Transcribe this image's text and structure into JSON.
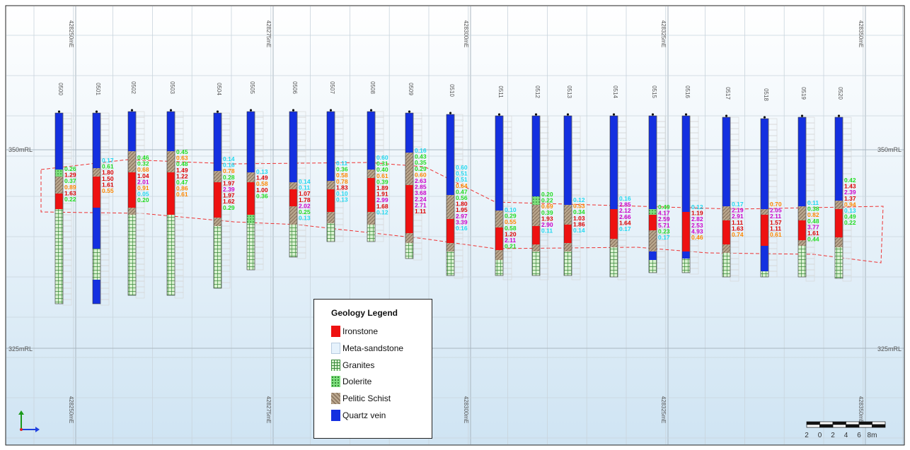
{
  "easting_labels": [
    "428250mE",
    "428275mE",
    "428300mE",
    "428325mE",
    "428350mE"
  ],
  "rl_labels": [
    "350mRL",
    "325mRL"
  ],
  "colors": {
    "ironstone": "#ee1111",
    "meta_sandstone": "#e6f2fc",
    "granites": "#d9f2d0",
    "dolerite": "#7ee07e",
    "pelitic_schist": "#b8a58c",
    "quartz_vein": "#1430e0",
    "assay_lime": "#22dd22",
    "assay_red": "#dd0000",
    "assay_orange": "#ff8800",
    "assay_magenta": "#cc00cc",
    "assay_cyan": "#22d8f0",
    "envelope": "#ee3333"
  },
  "legend": {
    "title": "Geology Legend",
    "items": [
      {
        "label": "Ironstone",
        "key": "ironstone"
      },
      {
        "label": "Meta-sandstone",
        "key": "meta_sandstone"
      },
      {
        "label": "Granites",
        "key": "granites"
      },
      {
        "label": "Dolerite",
        "key": "dolerite"
      },
      {
        "label": "Pelitic Schist",
        "key": "pelitic_schist"
      },
      {
        "label": "Quartz vein",
        "key": "quartz_vein"
      }
    ]
  },
  "scale_bar": {
    "ticks": [
      "2",
      "0",
      "2",
      "4",
      "6",
      "8m"
    ]
  },
  "holes": [
    {
      "id": "0500",
      "assays": [
        [
          "0.26",
          "lime"
        ],
        [
          "1.29",
          "red"
        ],
        [
          "0.37",
          "lime"
        ],
        [
          "0.89",
          "orange"
        ],
        [
          "1.63",
          "red"
        ],
        [
          "0.22",
          "lime"
        ]
      ]
    },
    {
      "id": "0501",
      "assays": [
        [
          "0.17",
          "cyan"
        ],
        [
          "0.61",
          "lime"
        ],
        [
          "1.80",
          "red"
        ],
        [
          "1.50",
          "red"
        ],
        [
          "1.61",
          "red"
        ],
        [
          "0.55",
          "orange"
        ]
      ]
    },
    {
      "id": "0502",
      "assays": [
        [
          "0.46",
          "lime"
        ],
        [
          "0.32",
          "lime"
        ],
        [
          "0.68",
          "orange"
        ],
        [
          "1.04",
          "red"
        ],
        [
          "2.01",
          "magenta"
        ],
        [
          "0.91",
          "orange"
        ],
        [
          "0.05",
          "cyan"
        ],
        [
          "0.20",
          "lime"
        ]
      ]
    },
    {
      "id": "0503",
      "assays": [
        [
          "0.45",
          "lime"
        ],
        [
          "0.63",
          "orange"
        ],
        [
          "0.48",
          "lime"
        ],
        [
          "1.49",
          "red"
        ],
        [
          "1.22",
          "red"
        ],
        [
          "0.47",
          "lime"
        ],
        [
          "0.86",
          "orange"
        ],
        [
          "0.61",
          "orange"
        ]
      ]
    },
    {
      "id": "0504",
      "assays": [
        [
          "0.14",
          "cyan"
        ],
        [
          "0.16",
          "cyan"
        ],
        [
          "0.78",
          "orange"
        ],
        [
          "0.28",
          "lime"
        ],
        [
          "1.97",
          "red"
        ],
        [
          "2.39",
          "magenta"
        ],
        [
          "1.97",
          "red"
        ],
        [
          "1.62",
          "red"
        ],
        [
          "0.29",
          "lime"
        ]
      ]
    },
    {
      "id": "0505",
      "assays": [
        [
          "0.13",
          "cyan"
        ],
        [
          "1.49",
          "red"
        ],
        [
          "0.58",
          "orange"
        ],
        [
          "1.00",
          "red"
        ],
        [
          "0.36",
          "lime"
        ]
      ]
    },
    {
      "id": "0506",
      "assays": [
        [
          "0.14",
          "cyan"
        ],
        [
          "0.11",
          "cyan"
        ],
        [
          "1.07",
          "red"
        ],
        [
          "1.78",
          "red"
        ],
        [
          "2.02",
          "magenta"
        ],
        [
          "0.25",
          "lime"
        ],
        [
          "0.13",
          "cyan"
        ]
      ]
    },
    {
      "id": "0507",
      "assays": [
        [
          "0.11",
          "cyan"
        ],
        [
          "0.36",
          "lime"
        ],
        [
          "0.58",
          "orange"
        ],
        [
          "0.78",
          "orange"
        ],
        [
          "1.83",
          "red"
        ],
        [
          "0.10",
          "cyan"
        ],
        [
          "0.13",
          "cyan"
        ]
      ]
    },
    {
      "id": "0508",
      "assays": [
        [
          "0.60",
          "cyan"
        ],
        [
          "0.31",
          "lime"
        ],
        [
          "0.40",
          "lime"
        ],
        [
          "0.61",
          "orange"
        ],
        [
          "0.39",
          "lime"
        ],
        [
          "1.89",
          "red"
        ],
        [
          "1.91",
          "red"
        ],
        [
          "2.99",
          "magenta"
        ],
        [
          "1.68",
          "red"
        ],
        [
          "0.12",
          "cyan"
        ]
      ]
    },
    {
      "id": "0509",
      "assays": [
        [
          "0.16",
          "cyan"
        ],
        [
          "0.43",
          "lime"
        ],
        [
          "0.35",
          "lime"
        ],
        [
          "0.29",
          "lime"
        ],
        [
          "0.60",
          "orange"
        ],
        [
          "2.63",
          "magenta"
        ],
        [
          "2.85",
          "magenta"
        ],
        [
          "3.68",
          "magenta"
        ],
        [
          "2.24",
          "magenta"
        ],
        [
          "2.71",
          "magenta"
        ],
        [
          "1.11",
          "red"
        ]
      ]
    },
    {
      "id": "0510",
      "assays": [
        [
          "0.60",
          "cyan"
        ],
        [
          "0.51",
          "cyan"
        ],
        [
          "0.51",
          "cyan"
        ],
        [
          "0.64",
          "orange"
        ],
        [
          "0.47",
          "lime"
        ],
        [
          "0.56",
          "lime"
        ],
        [
          "1.80",
          "red"
        ],
        [
          "1.95",
          "red"
        ],
        [
          "2.97",
          "magenta"
        ],
        [
          "3.39",
          "magenta"
        ],
        [
          "0.16",
          "cyan"
        ]
      ]
    },
    {
      "id": "0511",
      "assays": [
        [
          "0.10",
          "cyan"
        ],
        [
          "0.29",
          "lime"
        ],
        [
          "0.55",
          "orange"
        ],
        [
          "0.58",
          "lime"
        ],
        [
          "1.20",
          "red"
        ],
        [
          "2.11",
          "magenta"
        ],
        [
          "0.21",
          "lime"
        ]
      ]
    },
    {
      "id": "0512",
      "assays": [
        [
          "0.20",
          "lime"
        ],
        [
          "0.22",
          "lime"
        ],
        [
          "0.69",
          "orange"
        ],
        [
          "0.39",
          "lime"
        ],
        [
          "1.93",
          "red"
        ],
        [
          "2.90",
          "magenta"
        ],
        [
          "0.11",
          "cyan"
        ]
      ]
    },
    {
      "id": "0513",
      "assays": [
        [
          "0.12",
          "cyan"
        ],
        [
          "0.53",
          "orange"
        ],
        [
          "0.34",
          "lime"
        ],
        [
          "1.03",
          "red"
        ],
        [
          "1.86",
          "red"
        ],
        [
          "0.14",
          "cyan"
        ]
      ]
    },
    {
      "id": "0514",
      "assays": [
        [
          "0.16",
          "cyan"
        ],
        [
          "2.85",
          "magenta"
        ],
        [
          "2.12",
          "magenta"
        ],
        [
          "2.66",
          "magenta"
        ],
        [
          "1.64",
          "red"
        ],
        [
          "0.17",
          "cyan"
        ]
      ]
    },
    {
      "id": "0515",
      "assays": [
        [
          "0.49",
          "lime"
        ],
        [
          "4.17",
          "magenta"
        ],
        [
          "2.59",
          "magenta"
        ],
        [
          "5.71",
          "magenta"
        ],
        [
          "0.23",
          "lime"
        ],
        [
          "0.17",
          "cyan"
        ]
      ]
    },
    {
      "id": "0516",
      "assays": [
        [
          "0.12",
          "cyan"
        ],
        [
          "1.19",
          "red"
        ],
        [
          "2.82",
          "magenta"
        ],
        [
          "2.53",
          "magenta"
        ],
        [
          "4.93",
          "magenta"
        ],
        [
          "0.46",
          "orange"
        ]
      ]
    },
    {
      "id": "0517",
      "assays": [
        [
          "0.17",
          "cyan"
        ],
        [
          "2.19",
          "magenta"
        ],
        [
          "2.91",
          "magenta"
        ],
        [
          "1.11",
          "red"
        ],
        [
          "1.63",
          "red"
        ],
        [
          "0.74",
          "orange"
        ]
      ]
    },
    {
      "id": "0518",
      "assays": [
        [
          "0.70",
          "orange"
        ],
        [
          "2.05",
          "magenta"
        ],
        [
          "2.11",
          "magenta"
        ],
        [
          "1.57",
          "red"
        ],
        [
          "1.11",
          "red"
        ],
        [
          "0.61",
          "orange"
        ]
      ]
    },
    {
      "id": "0519",
      "assays": [
        [
          "0.11",
          "cyan"
        ],
        [
          "0.38",
          "lime"
        ],
        [
          "0.82",
          "orange"
        ],
        [
          "0.48",
          "lime"
        ],
        [
          "3.77",
          "magenta"
        ],
        [
          "1.61",
          "red"
        ],
        [
          "0.44",
          "lime"
        ]
      ]
    },
    {
      "id": "0520",
      "assays": [
        [
          "0.42",
          "lime"
        ],
        [
          "1.43",
          "red"
        ],
        [
          "2.39",
          "magenta"
        ],
        [
          "1.37",
          "red"
        ],
        [
          "0.94",
          "orange"
        ],
        [
          "0.13",
          "cyan"
        ],
        [
          "0.49",
          "lime"
        ],
        [
          "0.22",
          "lime"
        ]
      ]
    }
  ]
}
